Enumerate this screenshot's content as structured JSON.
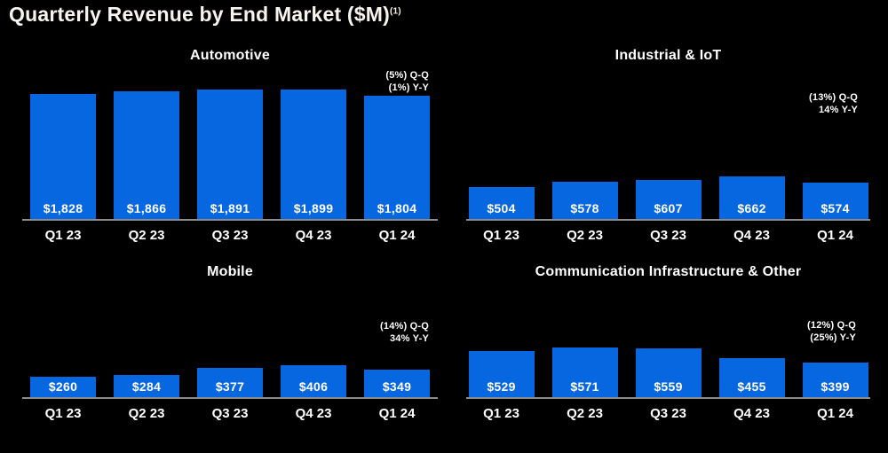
{
  "header": {
    "title": "Quarterly Revenue by End Market ($M)",
    "footnote_marker": "(1)"
  },
  "colors": {
    "background": "#000000",
    "bar": "#0667e0",
    "page_title_text": "#f7f4ee",
    "label_text": "#ffffff",
    "axis_line": "#8c8c8c"
  },
  "chart_data": [
    {
      "type": "bar",
      "title": "Automotive",
      "categories": [
        "Q1 23",
        "Q2 23",
        "Q3 23",
        "Q4 23",
        "Q1 24"
      ],
      "values": [
        1828,
        1866,
        1891,
        1899,
        1804
      ],
      "value_labels": [
        "$1,828",
        "$1,866",
        "$1,891",
        "$1,899",
        "$1,804"
      ],
      "unit": "$M",
      "grid": false,
      "value_label_position": "inside-bottom",
      "annotation": {
        "qq": "(5%) Q-Q",
        "yy": "(1%) Y-Y"
      }
    },
    {
      "type": "bar",
      "title": "Industrial & IoT",
      "categories": [
        "Q1 23",
        "Q2 23",
        "Q3 23",
        "Q4 23",
        "Q1 24"
      ],
      "values": [
        504,
        578,
        607,
        662,
        574
      ],
      "value_labels": [
        "$504",
        "$578",
        "$607",
        "$662",
        "$574"
      ],
      "unit": "$M",
      "grid": false,
      "value_label_position": "inside-bottom",
      "annotation": {
        "qq": "(13%) Q-Q",
        "yy": "14% Y-Y"
      }
    },
    {
      "type": "bar",
      "title": "Mobile",
      "categories": [
        "Q1 23",
        "Q2 23",
        "Q3 23",
        "Q4 23",
        "Q1 24"
      ],
      "values": [
        260,
        284,
        377,
        406,
        349
      ],
      "value_labels": [
        "$260",
        "$284",
        "$377",
        "$406",
        "$349"
      ],
      "unit": "$M",
      "grid": false,
      "value_label_position": "inside-bottom",
      "annotation": {
        "qq": "(14%) Q-Q",
        "yy": "34% Y-Y"
      }
    },
    {
      "type": "bar",
      "title": "Communication Infrastructure & Other",
      "categories": [
        "Q1 23",
        "Q2 23",
        "Q3 23",
        "Q4 23",
        "Q1 24"
      ],
      "values": [
        529,
        571,
        559,
        455,
        399
      ],
      "value_labels": [
        "$529",
        "$571",
        "$559",
        "$455",
        "$399"
      ],
      "unit": "$M",
      "grid": false,
      "value_label_position": "inside-bottom",
      "annotation": {
        "qq": "(12%) Q-Q",
        "yy": "(25%) Y-Y"
      }
    }
  ]
}
